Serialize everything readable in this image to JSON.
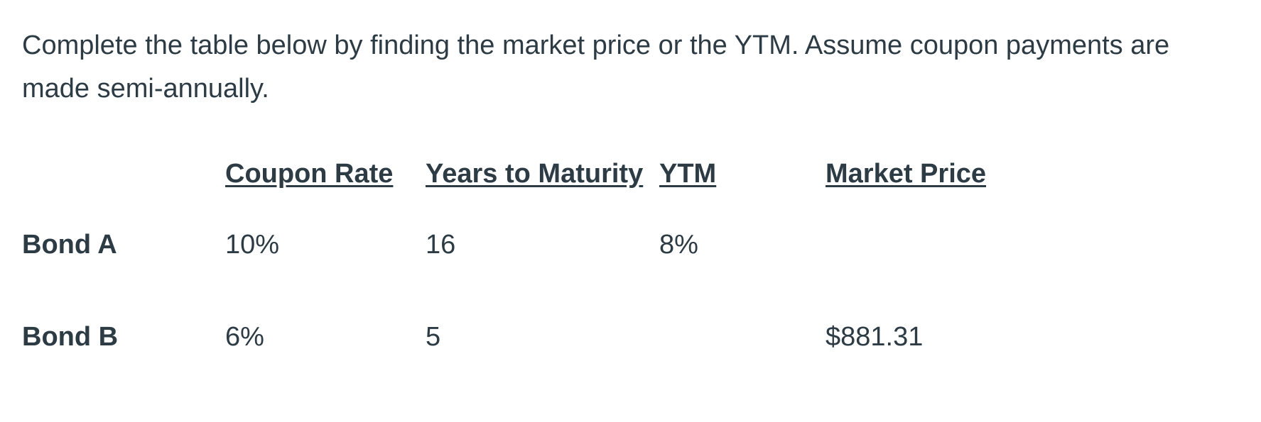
{
  "instructions": "Complete the table below by finding the market price or the YTM. Assume coupon payments are made semi-annually.",
  "table": {
    "headers": [
      "",
      "Coupon Rate",
      "Years to Maturity",
      "YTM",
      "Market Price"
    ],
    "rows": [
      {
        "label": "Bond A",
        "coupon_rate": "10%",
        "years_to_maturity": "16",
        "ytm": "8%",
        "market_price": ""
      },
      {
        "label": "Bond B",
        "coupon_rate": "6%",
        "years_to_maturity": "5",
        "ytm": "",
        "market_price": "$881.31"
      }
    ]
  }
}
